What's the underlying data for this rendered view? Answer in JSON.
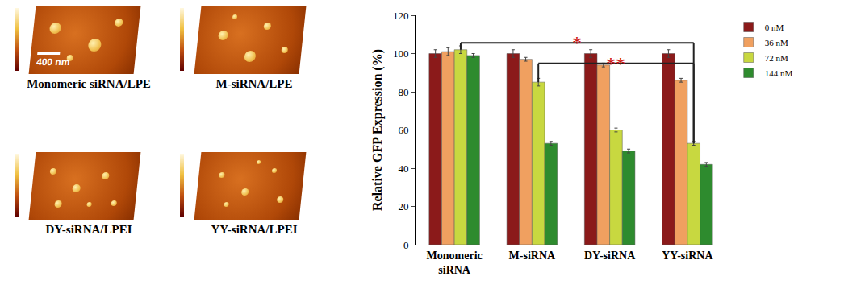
{
  "chart_data": {
    "type": "bar",
    "categories": [
      "Monomeric siRNA",
      "M-siRNA",
      "DY-siRNA",
      "YY-siRNA"
    ],
    "y_label": "Relative GFP Expression (%)",
    "series": [
      {
        "name": "0 nM",
        "color": "#8b1a1a",
        "values": [
          100,
          100,
          100,
          100
        ],
        "errors": [
          2,
          2,
          2,
          2
        ]
      },
      {
        "name": "36 nM",
        "color": "#f0a060",
        "values": [
          101,
          97,
          94,
          86
        ],
        "errors": [
          2,
          1,
          1,
          1
        ]
      },
      {
        "name": "72 nM",
        "color": "#c8d840",
        "values": [
          102,
          85,
          60,
          53
        ],
        "errors": [
          2,
          2,
          1,
          1
        ]
      },
      {
        "name": "144 nM",
        "color": "#2e8b2e",
        "values": [
          99,
          53,
          49,
          42
        ],
        "errors": [
          1,
          1,
          1,
          1
        ]
      }
    ],
    "ylim": [
      0,
      120
    ],
    "yticks": [
      0,
      20,
      40,
      60,
      80,
      100,
      120
    ],
    "grid": false,
    "legend": "top right",
    "annotations": [
      {
        "text": "*",
        "between": [
          "Monomeric siRNA",
          "YY-siRNA"
        ],
        "color": "#cc1111"
      },
      {
        "text": "**",
        "between": [
          "M-siRNA",
          "YY-siRNA"
        ],
        "color": "#cc1111"
      }
    ]
  },
  "afm_images": [
    {
      "label": "Monomeric siRNA/LPE",
      "scale_bar": "400 nm"
    },
    {
      "label": "M-siRNA/LPE"
    },
    {
      "label": "DY-siRNA/LPEI"
    },
    {
      "label": "YY-siRNA/LPEI"
    }
  ]
}
